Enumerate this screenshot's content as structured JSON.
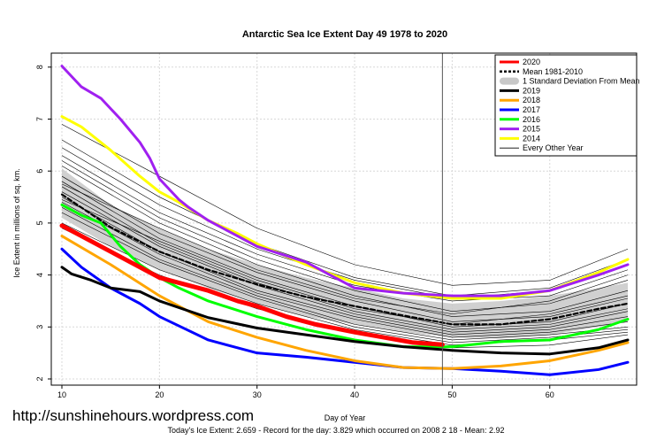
{
  "watermark": "http://sunshinehours.wordpress.com",
  "footer": "Today's Ice Extent: 2.659  - Record for the day: 3.829 which occurred on 2008 2 18  - Mean: 2.92",
  "chart_data": {
    "type": "line",
    "title": "Antarctic Sea Ice Extent Day 49 1978 to 2020",
    "xlabel": "Day of Year",
    "ylabel": "Ice Extent in millions of sq. km.",
    "xlim": [
      10,
      68
    ],
    "ylim": [
      2,
      8
    ],
    "xticks": [
      10,
      20,
      30,
      40,
      50,
      60
    ],
    "yticks": [
      2,
      3,
      4,
      5,
      6,
      7,
      8
    ],
    "grid": true,
    "legend_position": "top-right",
    "vertical_marker_day": 49,
    "legend": [
      {
        "label": "2020",
        "color": "#ff0000",
        "style": "thick"
      },
      {
        "label": "Mean 1981-2010",
        "color": "#000000",
        "style": "dashed"
      },
      {
        "label": "1 Standard Deviation From Mean",
        "color": "#c8c8c8",
        "style": "band"
      },
      {
        "label": "2019",
        "color": "#000000",
        "style": "thick"
      },
      {
        "label": "2018",
        "color": "#ffa500",
        "style": "thick"
      },
      {
        "label": "2017",
        "color": "#0000ff",
        "style": "thick"
      },
      {
        "label": "2016",
        "color": "#00ff00",
        "style": "thick"
      },
      {
        "label": "2015",
        "color": "#a020f0",
        "style": "thick"
      },
      {
        "label": "2014",
        "color": "#ffff00",
        "style": "thick"
      },
      {
        "label": "Every Other Year",
        "color": "#000000",
        "style": "thin"
      }
    ],
    "std_band": {
      "x": [
        10,
        15,
        20,
        25,
        30,
        35,
        40,
        45,
        50,
        55,
        60,
        65,
        68
      ],
      "upper": [
        6.05,
        5.35,
        4.9,
        4.5,
        4.2,
        3.95,
        3.75,
        3.55,
        3.45,
        3.5,
        3.6,
        3.75,
        3.85
      ],
      "lower": [
        5.1,
        4.55,
        4.1,
        3.75,
        3.45,
        3.2,
        3.05,
        2.9,
        2.8,
        2.78,
        2.85,
        3.0,
        3.1
      ]
    },
    "series": [
      {
        "name": "Mean 1981-2010",
        "color": "#000000",
        "width": 2.2,
        "dash": "5,3",
        "x": [
          10,
          15,
          20,
          25,
          30,
          35,
          40,
          45,
          50,
          55,
          60,
          65,
          68
        ],
        "values": [
          5.55,
          4.92,
          4.45,
          4.1,
          3.82,
          3.58,
          3.4,
          3.22,
          3.05,
          3.05,
          3.15,
          3.35,
          3.45
        ]
      },
      {
        "name": "2014",
        "color": "#ffff00",
        "width": 3,
        "x": [
          10,
          12,
          15,
          18,
          20,
          22,
          25,
          28,
          30,
          35,
          40,
          45,
          50,
          55,
          60,
          65,
          68
        ],
        "values": [
          7.05,
          6.85,
          6.4,
          5.9,
          5.6,
          5.4,
          5.05,
          4.8,
          4.6,
          4.2,
          3.85,
          3.65,
          3.55,
          3.55,
          3.7,
          4.05,
          4.3
        ]
      },
      {
        "name": "2015",
        "color": "#a020f0",
        "width": 3,
        "x": [
          10,
          12,
          14,
          16,
          18,
          19,
          20,
          21,
          22,
          23,
          25,
          28,
          30,
          35,
          40,
          45,
          50,
          55,
          60,
          65,
          68
        ],
        "values": [
          8.02,
          7.62,
          7.4,
          7.0,
          6.55,
          6.25,
          5.85,
          5.65,
          5.45,
          5.3,
          5.05,
          4.75,
          4.55,
          4.25,
          3.75,
          3.65,
          3.6,
          3.6,
          3.7,
          4.0,
          4.2
        ]
      },
      {
        "name": "2016",
        "color": "#00ff00",
        "width": 3,
        "x": [
          10,
          12,
          14,
          16,
          18,
          20,
          22,
          25,
          30,
          35,
          40,
          45,
          50,
          55,
          60,
          65,
          68
        ],
        "values": [
          5.35,
          5.15,
          5.0,
          4.55,
          4.2,
          3.95,
          3.75,
          3.5,
          3.2,
          2.95,
          2.75,
          2.62,
          2.62,
          2.72,
          2.75,
          2.95,
          3.15
        ]
      },
      {
        "name": "2017",
        "color": "#0000ff",
        "width": 3,
        "x": [
          10,
          12,
          15,
          18,
          20,
          25,
          30,
          35,
          40,
          45,
          50,
          55,
          60,
          65,
          68
        ],
        "values": [
          4.5,
          4.15,
          3.75,
          3.45,
          3.2,
          2.75,
          2.5,
          2.42,
          2.32,
          2.22,
          2.2,
          2.15,
          2.08,
          2.18,
          2.32
        ]
      },
      {
        "name": "2018",
        "color": "#ffa500",
        "width": 3,
        "x": [
          10,
          15,
          20,
          25,
          30,
          35,
          40,
          45,
          50,
          55,
          60,
          65,
          68
        ],
        "values": [
          4.75,
          4.2,
          3.6,
          3.1,
          2.8,
          2.55,
          2.35,
          2.22,
          2.2,
          2.25,
          2.35,
          2.55,
          2.7
        ]
      },
      {
        "name": "2019",
        "color": "#000000",
        "width": 3,
        "x": [
          10,
          11,
          13,
          15,
          18,
          20,
          25,
          30,
          35,
          40,
          45,
          50,
          55,
          60,
          65,
          68
        ],
        "values": [
          4.15,
          4.02,
          3.9,
          3.75,
          3.68,
          3.5,
          3.18,
          2.98,
          2.85,
          2.72,
          2.62,
          2.55,
          2.5,
          2.48,
          2.6,
          2.75
        ]
      },
      {
        "name": "2020",
        "color": "#ff0000",
        "width": 5,
        "x": [
          10,
          12,
          15,
          18,
          20,
          22,
          25,
          28,
          30,
          33,
          36,
          40,
          43,
          46,
          49
        ],
        "values": [
          4.95,
          4.75,
          4.45,
          4.15,
          3.95,
          3.85,
          3.7,
          3.5,
          3.4,
          3.2,
          3.05,
          2.9,
          2.8,
          2.7,
          2.66
        ]
      }
    ],
    "other_years": [
      {
        "x": [
          10,
          20,
          30,
          40,
          50,
          60,
          68
        ],
        "values": [
          6.9,
          5.9,
          4.9,
          4.2,
          3.8,
          3.9,
          4.5
        ]
      },
      {
        "x": [
          10,
          20,
          30,
          40,
          50,
          60,
          68
        ],
        "values": [
          6.6,
          5.5,
          4.6,
          3.95,
          3.6,
          3.75,
          4.3
        ]
      },
      {
        "x": [
          10,
          20,
          30,
          40,
          50,
          60,
          68
        ],
        "values": [
          6.3,
          5.2,
          4.4,
          3.8,
          3.5,
          3.6,
          4.1
        ]
      },
      {
        "x": [
          10,
          20,
          30,
          40,
          50,
          60,
          68
        ],
        "values": [
          6.2,
          5.1,
          4.3,
          3.7,
          3.3,
          3.45,
          3.9
        ]
      },
      {
        "x": [
          10,
          20,
          30,
          40,
          50,
          60,
          68
        ],
        "values": [
          6.1,
          5.0,
          4.2,
          3.6,
          3.2,
          3.3,
          3.7
        ]
      },
      {
        "x": [
          10,
          20,
          30,
          40,
          50,
          60,
          68
        ],
        "values": [
          5.9,
          4.8,
          4.05,
          3.5,
          3.1,
          3.2,
          3.55
        ]
      },
      {
        "x": [
          10,
          20,
          30,
          40,
          50,
          60,
          68
        ],
        "values": [
          5.8,
          4.7,
          3.95,
          3.4,
          3.0,
          3.1,
          3.45
        ]
      },
      {
        "x": [
          10,
          20,
          30,
          40,
          50,
          60,
          68
        ],
        "values": [
          5.7,
          4.6,
          3.85,
          3.3,
          2.95,
          3.05,
          3.35
        ]
      },
      {
        "x": [
          10,
          20,
          30,
          40,
          50,
          60,
          68
        ],
        "values": [
          5.6,
          4.55,
          3.8,
          3.25,
          2.9,
          3.0,
          3.3
        ]
      },
      {
        "x": [
          10,
          20,
          30,
          40,
          50,
          60,
          68
        ],
        "values": [
          5.5,
          4.45,
          3.7,
          3.2,
          2.85,
          2.95,
          3.2
        ]
      },
      {
        "x": [
          10,
          20,
          30,
          40,
          50,
          60,
          68
        ],
        "values": [
          5.4,
          4.4,
          3.65,
          3.15,
          2.8,
          2.9,
          3.1
        ]
      },
      {
        "x": [
          10,
          20,
          30,
          40,
          50,
          60,
          68
        ],
        "values": [
          5.3,
          4.3,
          3.6,
          3.05,
          2.75,
          2.85,
          3.0
        ]
      },
      {
        "x": [
          10,
          20,
          30,
          40,
          50,
          60,
          68
        ],
        "values": [
          5.2,
          4.25,
          3.55,
          3.0,
          2.7,
          2.8,
          2.95
        ]
      },
      {
        "x": [
          10,
          20,
          30,
          40,
          50,
          60,
          68
        ],
        "values": [
          5.0,
          4.1,
          3.45,
          2.95,
          2.65,
          2.75,
          2.9
        ]
      },
      {
        "x": [
          10,
          20,
          30,
          40,
          50,
          60,
          68
        ],
        "values": [
          4.9,
          4.0,
          3.35,
          2.9,
          2.6,
          2.65,
          2.85
        ]
      },
      {
        "x": [
          10,
          20,
          30,
          40,
          50,
          60,
          68
        ],
        "values": [
          5.75,
          4.9,
          4.1,
          3.55,
          3.25,
          3.5,
          4.0
        ]
      },
      {
        "x": [
          10,
          20,
          30,
          40,
          50,
          60,
          68
        ],
        "values": [
          5.45,
          4.65,
          3.9,
          3.35,
          3.05,
          3.25,
          3.6
        ]
      },
      {
        "x": [
          10,
          20,
          30,
          40,
          50,
          60,
          68
        ],
        "values": [
          6.45,
          5.35,
          4.5,
          3.9,
          3.55,
          3.7,
          4.2
        ]
      }
    ]
  }
}
